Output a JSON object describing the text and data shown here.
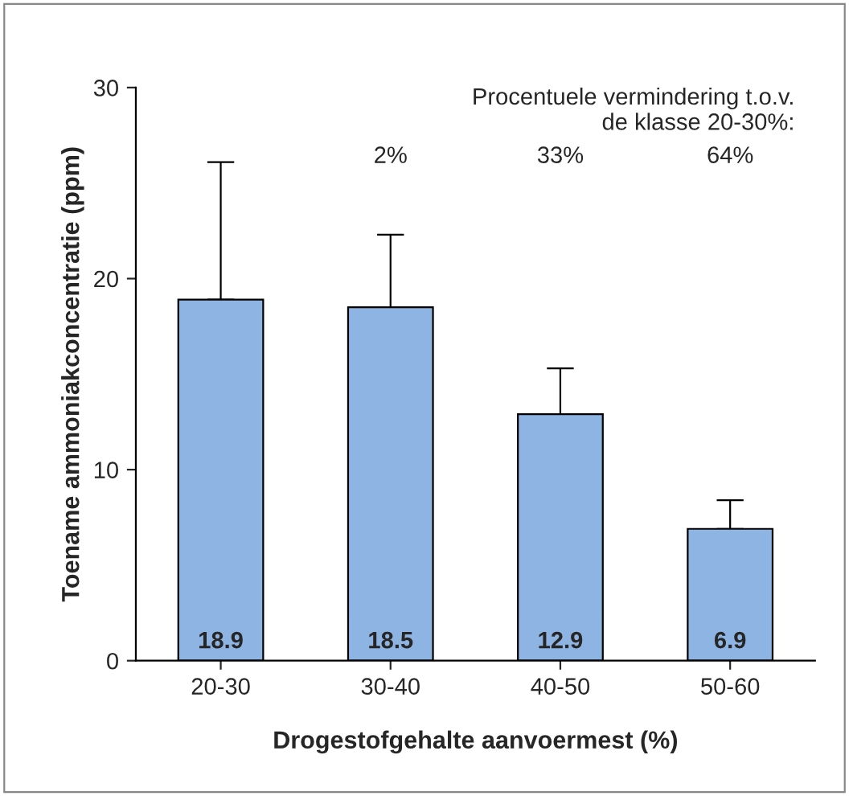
{
  "chart_data": {
    "type": "bar",
    "xlabel": "Drogestofgehalte aanvoermest (%)",
    "ylabel": "Toename ammoniakconcentratie (ppm)",
    "categories": [
      "20-30",
      "30-40",
      "40-50",
      "50-60"
    ],
    "values": [
      18.9,
      18.5,
      12.9,
      6.9
    ],
    "errors": [
      [
        18.9,
        26.1
      ],
      [
        18.5,
        22.3
      ],
      [
        12.9,
        15.3
      ],
      [
        6.9,
        8.4
      ]
    ],
    "color": "#8db4e2",
    "ylim": [
      0,
      30
    ],
    "yticks": [
      0,
      10,
      20,
      30
    ],
    "data_labels": true,
    "grid": false,
    "legend": false,
    "annotations": [
      "Procentuele vermindering t.o.v.\nde klasse 20-30%:",
      "2%",
      "33%",
      "64%"
    ]
  }
}
